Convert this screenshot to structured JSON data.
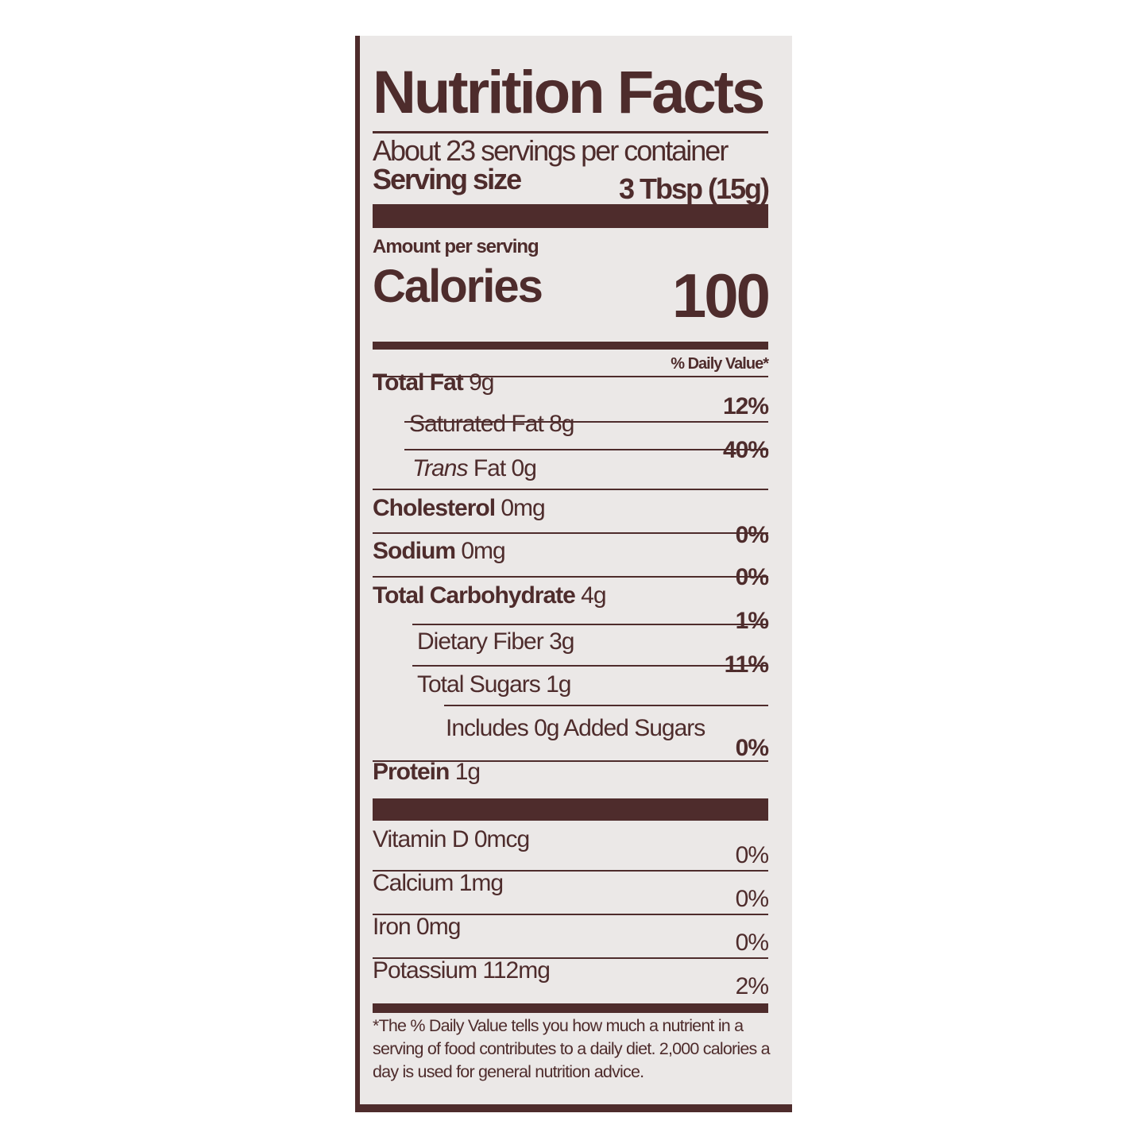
{
  "title": "Nutrition Facts",
  "servings_per_container": "About 23 servings per container",
  "serving_size_label": "Serving size",
  "serving_size_value": "3 Tbsp (15g)",
  "amount_per_serving": "Amount per serving",
  "calories_label": "Calories",
  "calories_value": "100",
  "daily_value_header": "% Daily Value*",
  "nutrients": [
    {
      "name": "Total Fat",
      "amount": "9g",
      "dv": "12%"
    },
    {
      "name": "Saturated Fat",
      "amount": "8g",
      "dv": "40%"
    },
    {
      "name": "Trans",
      "name_suffix": "Fat",
      "amount": "0g",
      "dv": ""
    },
    {
      "name": "Cholesterol",
      "amount": "0mg",
      "dv": "0%"
    },
    {
      "name": "Sodium",
      "amount": "0mg",
      "dv": "0%"
    },
    {
      "name": "Total Carbohydrate",
      "amount": "4g",
      "dv": "1%"
    },
    {
      "name": "Dietary Fiber",
      "amount": "3g",
      "dv": "11%"
    },
    {
      "name": "Total Sugars",
      "amount": "1g",
      "dv": ""
    },
    {
      "name": "Includes 0g Added Sugars",
      "amount": "",
      "dv": "0%"
    },
    {
      "name": "Protein",
      "amount": "1g",
      "dv": ""
    }
  ],
  "vitamins": [
    {
      "name": "Vitamin D",
      "amount": "0mcg",
      "dv": "0%"
    },
    {
      "name": "Calcium",
      "amount": "1mg",
      "dv": "0%"
    },
    {
      "name": "Iron",
      "amount": "0mg",
      "dv": "0%"
    },
    {
      "name": "Potassium",
      "amount": "112mg",
      "dv": "2%"
    }
  ],
  "footnote": "*The % Daily Value tells you how much a nutrient in a serving of food contributes to a daily diet. 2,000 calories a day is used for general nutrition advice.",
  "colors": {
    "ink": "#4e2c2c",
    "panel": "#ebe8e7"
  }
}
